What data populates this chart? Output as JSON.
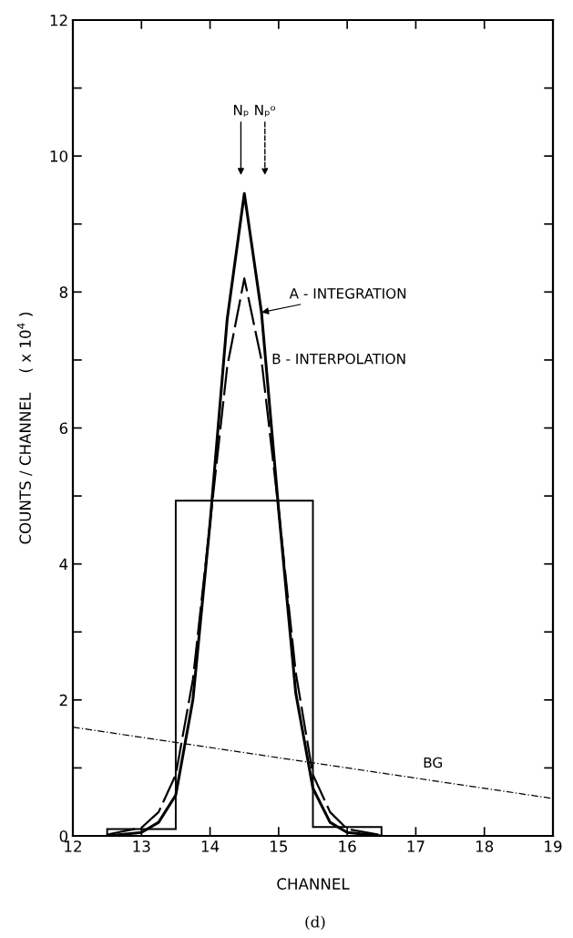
{
  "chart_data": {
    "type": "line",
    "xlabel": "CHANNEL",
    "ylabel": "COUNTS / CHANNEL    ( x 10$^{4}$ )",
    "xlim": [
      12,
      19
    ],
    "ylim": [
      0,
      12
    ],
    "xticks": [
      12,
      13,
      14,
      15,
      16,
      17,
      18,
      19
    ],
    "yticks": [
      0,
      {
        "value": 1,
        "label": null
      },
      2,
      {
        "value": 3,
        "label": null
      },
      4,
      {
        "value": 5,
        "label": null
      },
      6,
      {
        "value": 7,
        "label": null
      },
      8,
      {
        "value": 9,
        "label": null
      },
      10,
      {
        "value": 11,
        "label": null
      },
      12
    ],
    "grid": false,
    "legend": false,
    "series": [
      {
        "type": "histogram",
        "color": "#000000",
        "bins": [
          12.5,
          13.5,
          15.5,
          16.5
        ],
        "values": [
          0.1,
          4.93,
          0.13
        ]
      },
      {
        "name": "A - INTEGRATION",
        "color": "#000000",
        "line_style": "solid",
        "x": [
          12.5,
          13.0,
          13.25,
          13.5,
          13.75,
          14.0,
          14.25,
          14.5,
          14.75,
          15.0,
          15.25,
          15.5,
          15.75,
          16.0,
          16.5
        ],
        "values": [
          0.0,
          0.05,
          0.2,
          0.6,
          2.0,
          4.6,
          7.6,
          9.45,
          7.7,
          4.8,
          2.1,
          0.7,
          0.2,
          0.05,
          0.0
        ]
      },
      {
        "name": "B - INTERPOLATION",
        "color": "#000000",
        "line_style": "dashed",
        "x": [
          12.5,
          13.0,
          13.25,
          13.5,
          13.75,
          14.0,
          14.25,
          14.5,
          14.75,
          15.0,
          15.25,
          15.5,
          15.75,
          16.0,
          16.5
        ],
        "values": [
          0.02,
          0.12,
          0.35,
          0.9,
          2.3,
          4.6,
          6.9,
          8.2,
          7.0,
          4.8,
          2.4,
          0.9,
          0.35,
          0.1,
          0.01
        ]
      },
      {
        "name": "BG",
        "color": "#000000",
        "line_style": "dotted",
        "x": [
          12,
          19
        ],
        "values": [
          1.6,
          0.55
        ]
      }
    ],
    "annotations": [
      "Nₚ",
      "Nₚᵒ",
      "(d)"
    ]
  }
}
